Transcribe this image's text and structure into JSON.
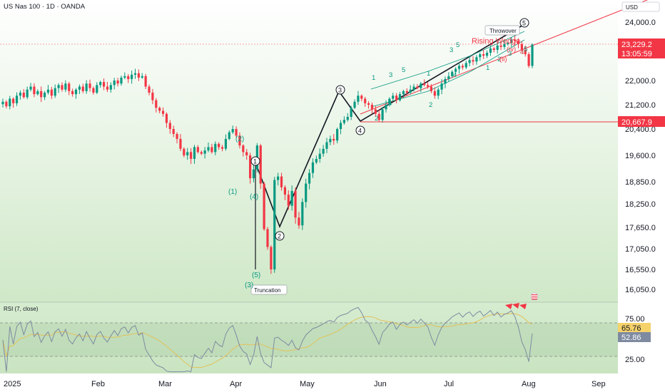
{
  "header": {
    "symbol": "US Nas 100 · 1D · OANDA"
  },
  "currency": "USD",
  "price_badges": {
    "last": {
      "price": "23,229.2",
      "countdown": "13:05:59",
      "color": "#f23645"
    },
    "level": {
      "price": "20,667.9",
      "color": "#f23645"
    }
  },
  "rsi_panel": {
    "label": "RSI (7, close)",
    "badges": {
      "upper": "65.76",
      "lower": "52.86"
    },
    "upper_band": 70,
    "lower_band": 30,
    "ticks": [
      "75.00",
      "25.00"
    ]
  },
  "x_axis_labels": [
    "2025",
    "Feb",
    "Mar",
    "Apr",
    "May",
    "Jun",
    "Jul",
    "Aug",
    "Sep"
  ],
  "chart_data": {
    "type": "candlestick",
    "title": "US Nas 100 · 1D · OANDA",
    "y_ticks": [
      "24,000.0",
      "22,000.0",
      "21,200.0",
      "20,400.0",
      "19,600.0",
      "18,850.0",
      "18,250.0",
      "17,650.0",
      "17,050.0",
      "16,550.0",
      "16,050.0"
    ],
    "x_ticks": [
      "2025",
      "Feb",
      "Mar",
      "Apr",
      "May",
      "Jun",
      "Jul",
      "Aug",
      "Sep"
    ],
    "closes_approx": [
      21300,
      21150,
      21400,
      21250,
      21500,
      21600,
      21450,
      21700,
      21800,
      21550,
      21650,
      21450,
      21600,
      21700,
      21500,
      21750,
      21850,
      21700,
      21900,
      21650,
      21550,
      21700,
      21800,
      21650,
      21900,
      21750,
      21600,
      21850,
      21950,
      21800,
      21700,
      21850,
      22000,
      21900,
      22100,
      22150,
      22050,
      22200,
      22250,
      22100,
      22150,
      21800,
      21600,
      21350,
      21100,
      21000,
      20900,
      20600,
      20400,
      20250,
      20100,
      19800,
      19600,
      19700,
      19500,
      19850,
      19700,
      19650,
      19750,
      19850,
      19700,
      19950,
      19850,
      19800,
      20100,
      20300,
      20400,
      20200,
      19900,
      19700,
      19600,
      18950,
      19200,
      19900,
      18800,
      17600,
      17100,
      16550,
      18900,
      19000,
      18700,
      18500,
      18200,
      18600,
      17900,
      17700,
      18300,
      18800,
      19100,
      19400,
      19500,
      19650,
      19800,
      20000,
      20100,
      20050,
      20400,
      20600,
      20700,
      20800,
      21100,
      21300,
      21500,
      21400,
      21250,
      21200,
      21050,
      20900,
      20700,
      21050,
      21200,
      21400,
      21500,
      21350,
      21550,
      21650,
      21600,
      21700,
      21800,
      21750,
      21900,
      21850,
      21800,
      21650,
      21500,
      21700,
      21900,
      22050,
      22150,
      22300,
      22400,
      22500,
      22450,
      22600,
      22700,
      22650,
      22800,
      22900,
      22850,
      22950,
      23100,
      23050,
      23200,
      23150,
      23250,
      23300,
      23400,
      23350,
      23250,
      23050,
      22900,
      22500,
      23229.2
    ],
    "wave_labels": [
      "(1)",
      "(2)",
      "(3)",
      "(4)",
      "(5)",
      "1",
      "2",
      "3",
      "4",
      "5",
      "1",
      "2",
      "3",
      "4",
      "5",
      "1",
      "2",
      "3",
      "4",
      "5",
      "(iv)",
      "(ii)",
      "4"
    ],
    "annotations": [
      "Truncation",
      "Throwover",
      "Rising Wedge"
    ],
    "horizontal_levels": [
      20667.9
    ],
    "last_price": 23229.2
  }
}
